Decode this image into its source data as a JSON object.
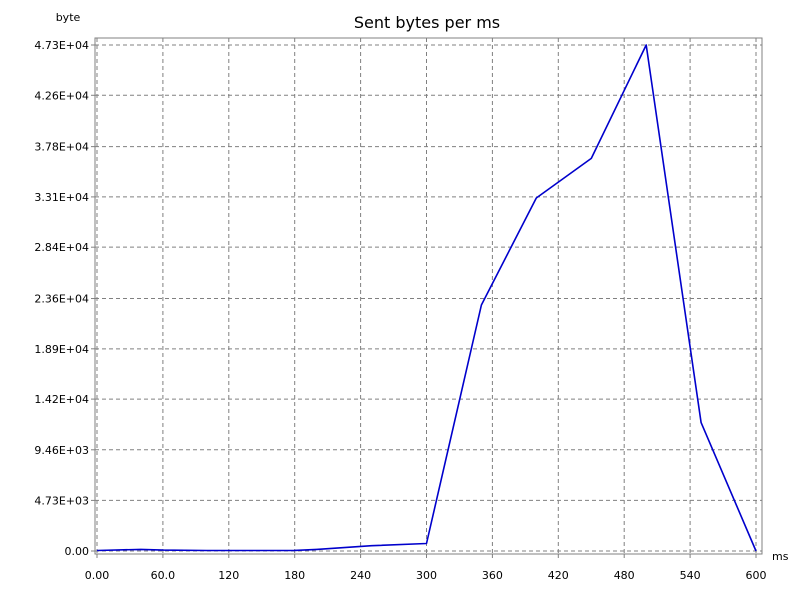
{
  "chart_data": {
    "type": "line",
    "title": "Sent bytes per ms",
    "xlabel": "ms",
    "ylabel": "byte",
    "xlim": [
      0,
      600
    ],
    "ylim": [
      0,
      47300
    ],
    "grid": true,
    "x_ticks": [
      "0.00",
      "60.0",
      "120",
      "180",
      "240",
      "300",
      "360",
      "420",
      "480",
      "540",
      "600"
    ],
    "x_tick_values": [
      0,
      60,
      120,
      180,
      240,
      300,
      360,
      420,
      480,
      540,
      600
    ],
    "y_ticks": [
      "0.00",
      "4.73E+03",
      "9.46E+03",
      "1.42E+04",
      "1.89E+04",
      "2.36E+04",
      "2.84E+04",
      "3.31E+04",
      "3.78E+04",
      "4.26E+04",
      "4.73E+04"
    ],
    "y_tick_values": [
      0,
      4730,
      9460,
      14200,
      18900,
      23600,
      28400,
      33100,
      37800,
      42600,
      47300
    ],
    "series": [
      {
        "color": "#0000cc",
        "x": [
          0,
          40,
          60,
          100,
          150,
          180,
          200,
          250,
          300,
          350,
          400,
          450,
          500,
          550,
          600
        ],
        "y": [
          50,
          150,
          80,
          50,
          50,
          60,
          150,
          500,
          700,
          23000,
          33000,
          36700,
          47300,
          12000,
          0
        ]
      }
    ]
  }
}
